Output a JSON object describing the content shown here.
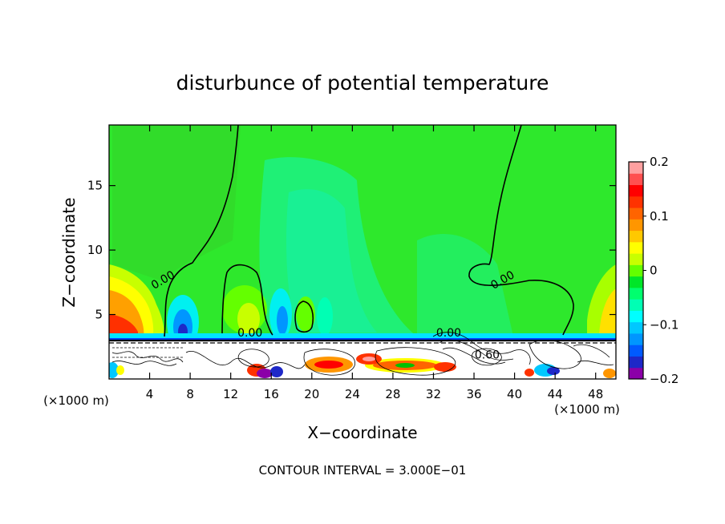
{
  "chart_data": {
    "type": "heatmap",
    "title": "disturbunce of potential temperature",
    "xlabel": "X−coordinate",
    "ylabel": "Z−coordinate",
    "x_unit": "(×1000 m)",
    "y_unit": "(×1000 m)",
    "xlim": [
      0,
      50
    ],
    "ylim": [
      0,
      19.7
    ],
    "x_ticks": [
      4,
      8,
      12,
      16,
      20,
      24,
      28,
      32,
      36,
      40,
      44,
      48
    ],
    "y_ticks": [
      5,
      10,
      15
    ],
    "colorbar": {
      "range": [
        -0.2,
        0.2
      ],
      "tick_labels": [
        "0.2",
        "0.1",
        "0",
        "−0.1",
        "−0.2"
      ],
      "tick_values": [
        0.2,
        0.1,
        0,
        -0.1,
        -0.2
      ],
      "colors": [
        "#8b00a8",
        "#1e28c8",
        "#005aff",
        "#0096ff",
        "#00c8ff",
        "#00ffff",
        "#00ffb4",
        "#00ff6e",
        "#00e628",
        "#64ff00",
        "#c8ff00",
        "#ffff00",
        "#ffc800",
        "#ff9600",
        "#ff6400",
        "#ff3200",
        "#ff0000",
        "#ff5050",
        "#ffa0a0"
      ]
    },
    "contour_labels": [
      {
        "text": "0.00",
        "x": 5.3,
        "y": 7.7
      },
      {
        "text": "0.00",
        "x": 13.9,
        "y": 3.6
      },
      {
        "text": "0.00",
        "x": 33.5,
        "y": 3.6
      },
      {
        "text": "0.00",
        "x": 38.8,
        "y": 7.7
      },
      {
        "text": "0.60",
        "x": 37.3,
        "y": 1.9
      }
    ],
    "footer": "CONTOUR INTERVAL = 3.000E−01"
  }
}
